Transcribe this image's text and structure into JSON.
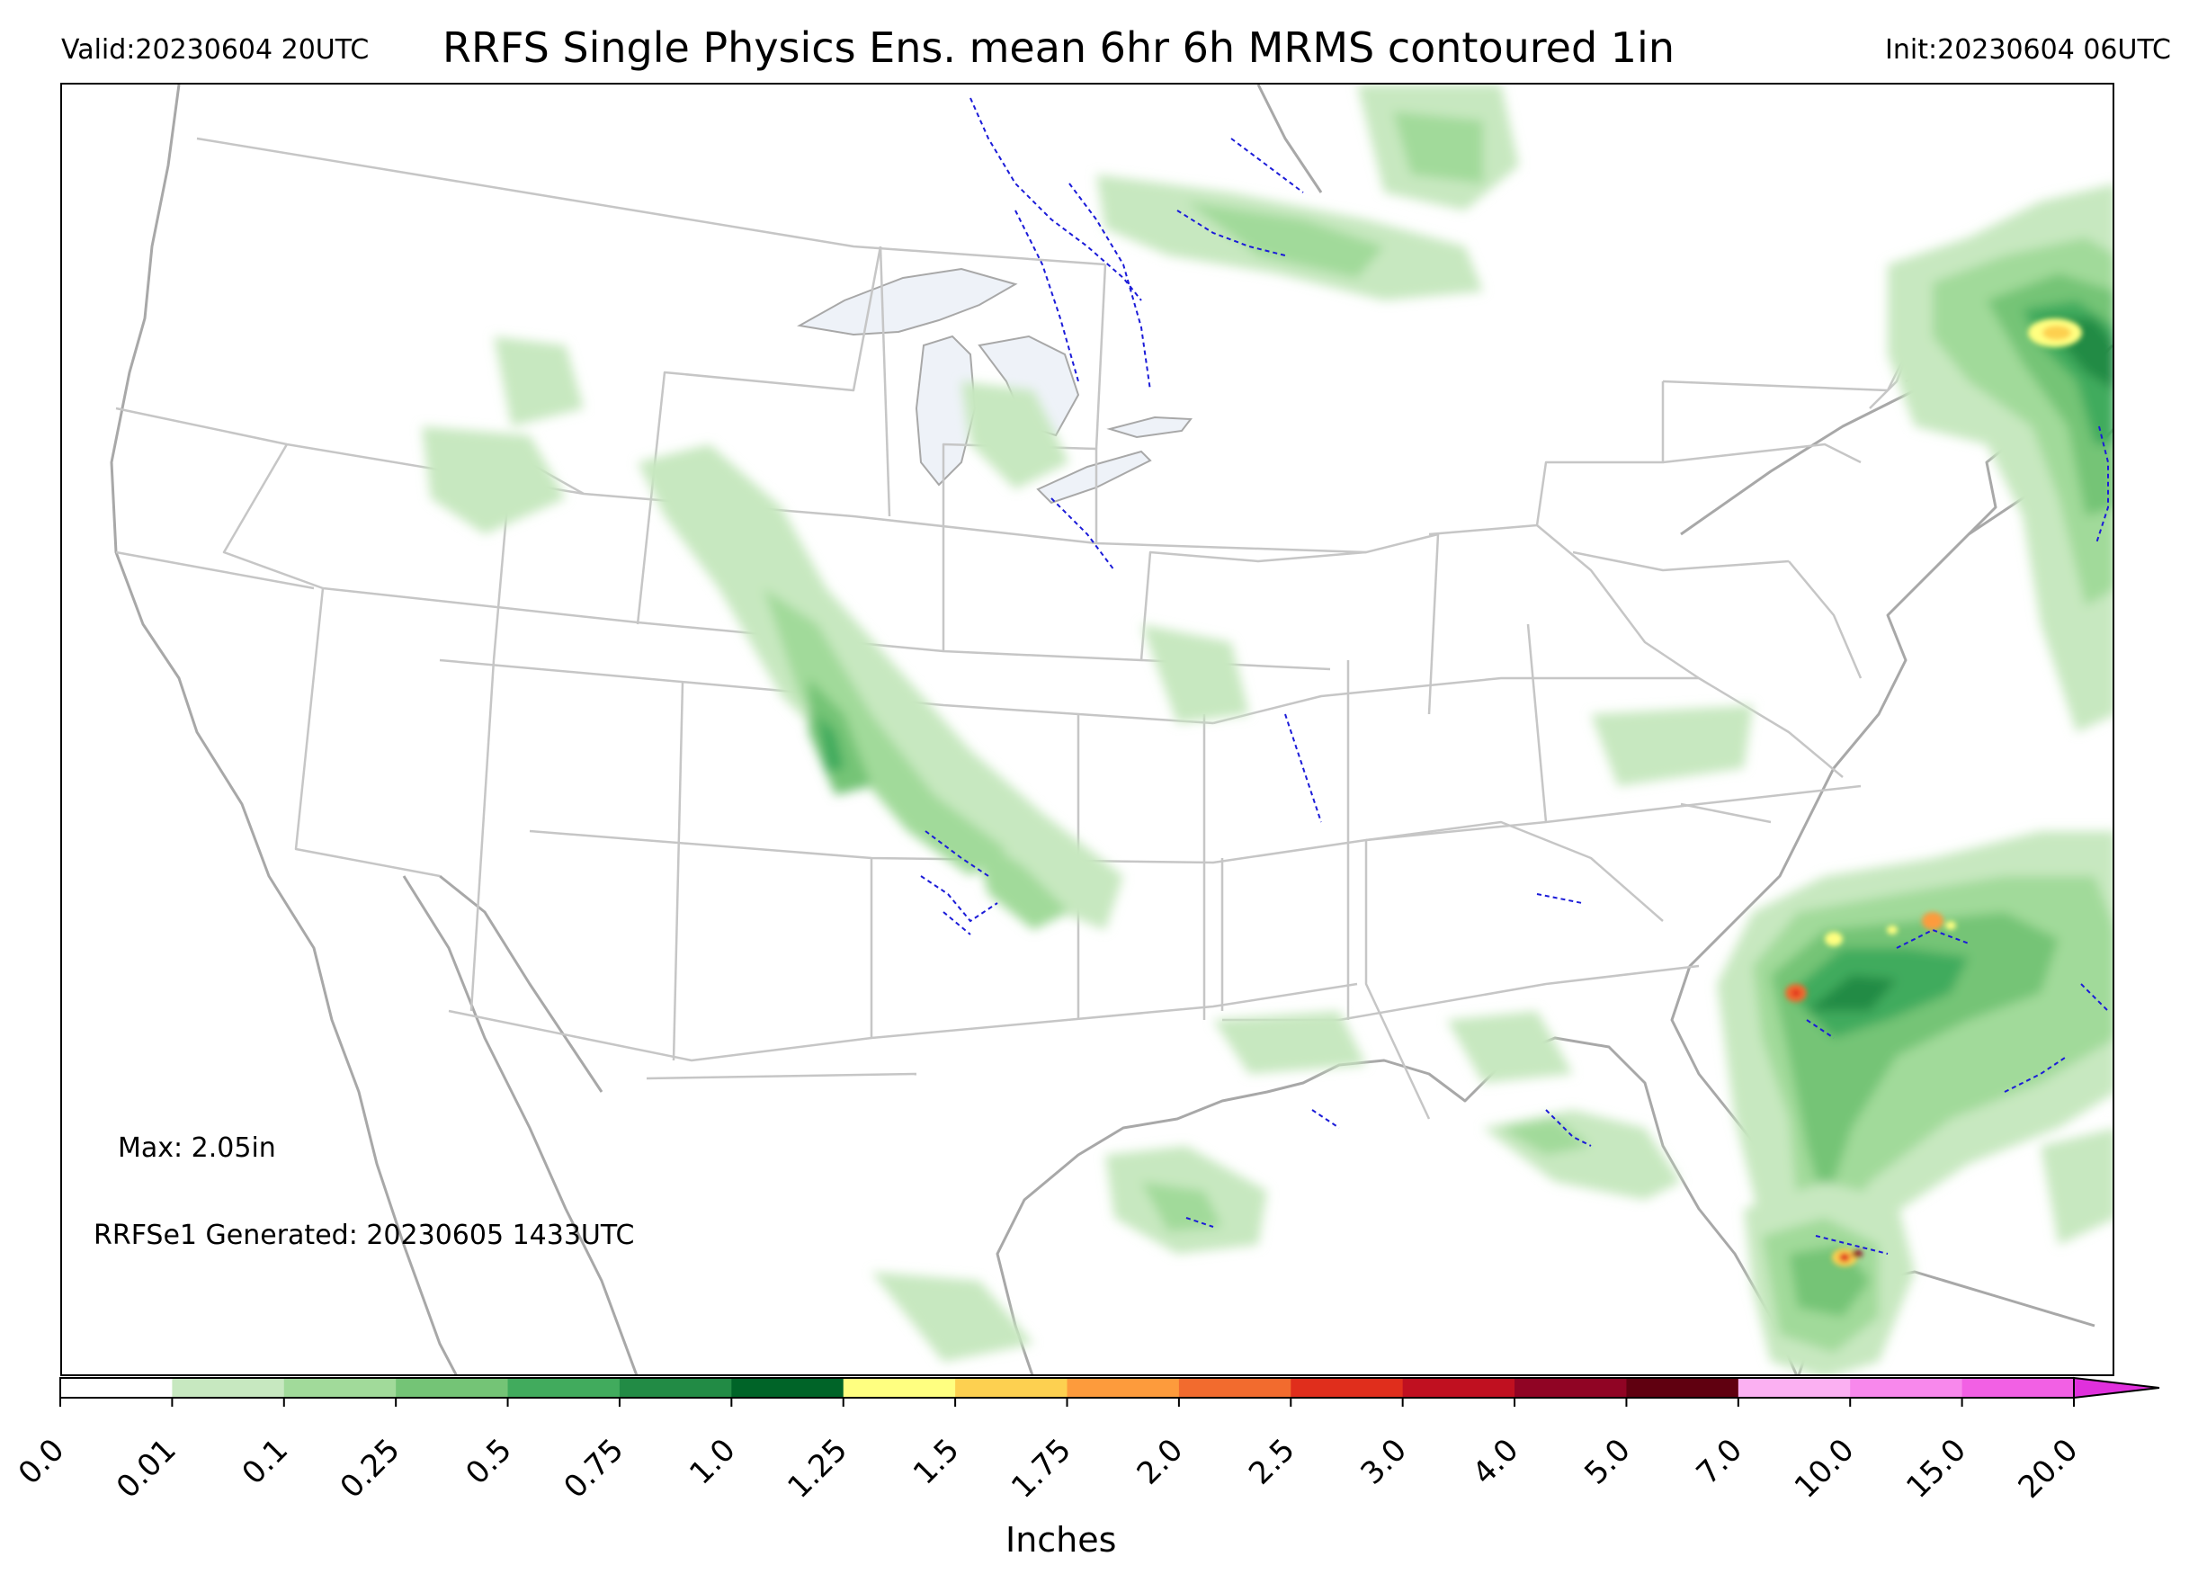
{
  "header": {
    "valid": "Valid:20230604 20UTC",
    "title": "RRFS Single Physics Ens. mean 6hr 6h MRMS contoured 1in",
    "init": "Init:20230604 06UTC"
  },
  "annotations": {
    "max": "Max: 2.05in",
    "generated": "RRFSe1 Generated: 20230605 1433UTC"
  },
  "colorbar": {
    "title": "Inches",
    "levels": [
      "0.0",
      "0.01",
      "0.1",
      "0.25",
      "0.5",
      "0.75",
      "1.0",
      "1.25",
      "1.5",
      "1.75",
      "2.0",
      "2.5",
      "3.0",
      "4.0",
      "5.0",
      "7.0",
      "10.0",
      "15.0",
      "20.0"
    ],
    "colors": [
      "#ffffff",
      "#c7e8c0",
      "#a1da9a",
      "#74c476",
      "#41ab5d",
      "#228b45",
      "#006428",
      "#ffff80",
      "#fdd050",
      "#fd9b3c",
      "#f26b2e",
      "#e02e1c",
      "#c01020",
      "#900424",
      "#600010",
      "#fbb0f2",
      "#f888ec",
      "#f260e4",
      "#e030dc",
      "#c010d8",
      "#8000c8"
    ],
    "extend": "max"
  },
  "map": {
    "projection": "lambert-conformal-conus",
    "field": "6h precipitation ensemble mean (shaded)",
    "contour": "MRMS 1 in (blue dashed)",
    "palette": {
      "state": "#c6c6c6",
      "coast": "#a8a8a8",
      "lake": "#eef2f8",
      "contour": "#1b1bd8"
    }
  }
}
